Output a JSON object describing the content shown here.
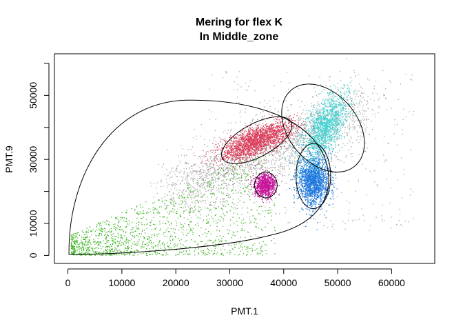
{
  "chart_data": {
    "type": "scatter",
    "title": "Mering for flex K",
    "subtitle": "In Middle_zone",
    "xlabel": "PMT.1",
    "ylabel": "PMT.9",
    "xlim": [
      -2500,
      68000
    ],
    "ylim": [
      -2500,
      63000
    ],
    "x_ticks": [
      0,
      10000,
      20000,
      30000,
      40000,
      50000,
      60000
    ],
    "x_tick_labels": [
      "0",
      "10000",
      "20000",
      "30000",
      "40000",
      "50000",
      "60000"
    ],
    "y_ticks": [
      0,
      10000,
      30000,
      50000
    ],
    "y_tick_labels": [
      "0",
      "10000",
      "30000",
      "50000"
    ],
    "grid": false,
    "legend": "none",
    "clusters": [
      {
        "color": "#A9A9A9",
        "center": [
          43000,
          38000
        ],
        "spread": [
          9000,
          9000
        ],
        "count": 2600,
        "shape": "diagonal-cloud"
      },
      {
        "color": "#3CB521",
        "center": [
          12000,
          12000
        ],
        "spread": [
          10000,
          8000
        ],
        "count": 1500,
        "shape": "triangle"
      },
      {
        "color": "#DC3C5A",
        "center": [
          35000,
          36000
        ],
        "spread": [
          6000,
          4500
        ],
        "count": 2000,
        "shape": "ellipse"
      },
      {
        "color": "#C8149A",
        "center": [
          36500,
          22000
        ],
        "spread": [
          1800,
          3200
        ],
        "count": 900,
        "shape": "ellipse"
      },
      {
        "color": "#1E78DC",
        "center": [
          45500,
          23500
        ],
        "spread": [
          2600,
          7000
        ],
        "count": 1800,
        "shape": "ellipse"
      },
      {
        "color": "#3CD2D2",
        "center": [
          47500,
          40000
        ],
        "spread": [
          3800,
          9000
        ],
        "count": 1400,
        "shape": "ellipse"
      }
    ],
    "gates": [
      {
        "name": "green-gate",
        "type": "teardrop"
      },
      {
        "name": "red-gate",
        "center": [
          35000,
          36000
        ],
        "rx": 7200,
        "ry": 5200,
        "angle_deg": 28
      },
      {
        "name": "magenta-gate",
        "center": [
          36700,
          22000
        ],
        "rx": 2100,
        "ry": 4000,
        "angle_deg": 0
      },
      {
        "name": "blue-gate",
        "center": [
          45500,
          24800
        ],
        "rx": 3200,
        "ry": 10200,
        "angle_deg": 0
      },
      {
        "name": "cyan-gate",
        "center": [
          47300,
          39800
        ],
        "rx": 6400,
        "ry": 15500,
        "angle_deg": 40
      }
    ]
  }
}
